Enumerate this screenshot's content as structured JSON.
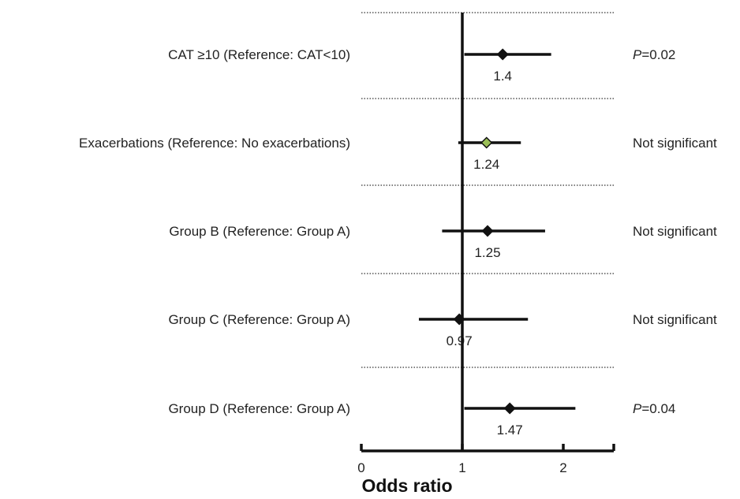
{
  "chart_data": {
    "type": "forest",
    "xlabel": "Odds ratio",
    "xlim": [
      0,
      2.5
    ],
    "xticks": [
      0,
      1,
      2
    ],
    "reference_line": 1,
    "rows": [
      {
        "label": "CAT ≥10 (Reference: CAT<10)",
        "or": 1.4,
        "ci": [
          1.02,
          1.88
        ],
        "value_label": "1.4",
        "significance": "=0.02",
        "sig_prefix": "P",
        "marker_color": "#111111"
      },
      {
        "label": "Exacerbations (Reference: No exacerbations)",
        "or": 1.24,
        "ci": [
          0.96,
          1.58
        ],
        "value_label": "1.24",
        "significance": "Not significant",
        "sig_prefix": "",
        "marker_color": "#9bbf57"
      },
      {
        "label": "Group B  (Reference: Group A)",
        "or": 1.25,
        "ci": [
          0.8,
          1.82
        ],
        "value_label": "1.25",
        "significance": "Not significant",
        "sig_prefix": "",
        "marker_color": "#111111"
      },
      {
        "label": "Group C  (Reference: Group A)",
        "or": 0.97,
        "ci": [
          0.57,
          1.65
        ],
        "value_label": "0.97",
        "significance": "Not significant",
        "sig_prefix": "",
        "marker_color": "#111111"
      },
      {
        "label": "Group D (Reference: Group A)",
        "or": 1.47,
        "ci": [
          1.02,
          2.12
        ],
        "value_label": "1.47",
        "significance": "=0.04",
        "sig_prefix": "P",
        "marker_color": "#111111"
      }
    ]
  }
}
